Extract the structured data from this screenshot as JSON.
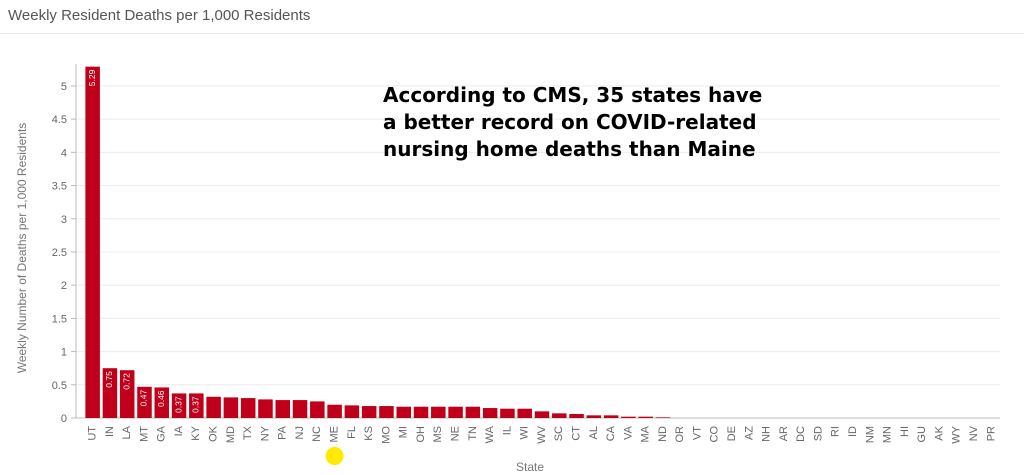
{
  "chart_data": {
    "type": "bar",
    "title": "Weekly Resident Deaths per 1,000 Residents",
    "xlabel": "State",
    "ylabel": "Weekly Number of Deaths per 1,000 Residents",
    "ylim": [
      0,
      5.3
    ],
    "yticks": [
      "0",
      "0.5",
      "1",
      "1.5",
      "2",
      "2.5",
      "3",
      "3.5",
      "4",
      "4.5",
      "5"
    ],
    "ytick_values": [
      0,
      0.5,
      1,
      1.5,
      2,
      2.5,
      3,
      3.5,
      4,
      4.5,
      5
    ],
    "grid": true,
    "bar_color": "#c0001a",
    "highlight_color": "#ffea00",
    "highlight_category": "ME",
    "categories": [
      "UT",
      "IN",
      "LA",
      "MT",
      "GA",
      "IA",
      "KY",
      "OK",
      "MD",
      "TX",
      "NY",
      "PA",
      "NJ",
      "NC",
      "ME",
      "FL",
      "KS",
      "MO",
      "MI",
      "OH",
      "MS",
      "NE",
      "TN",
      "WA",
      "IL",
      "WI",
      "WV",
      "SC",
      "CT",
      "AL",
      "CA",
      "VA",
      "MA",
      "ND",
      "OR",
      "VT",
      "CO",
      "DE",
      "AZ",
      "NH",
      "AR",
      "DC",
      "SD",
      "RI",
      "ID",
      "NM",
      "MN",
      "HI",
      "GU",
      "AK",
      "WY",
      "NV",
      "PR"
    ],
    "values": [
      5.29,
      0.75,
      0.72,
      0.47,
      0.46,
      0.37,
      0.37,
      0.32,
      0.31,
      0.3,
      0.28,
      0.27,
      0.27,
      0.25,
      0.2,
      0.19,
      0.18,
      0.18,
      0.17,
      0.17,
      0.17,
      0.17,
      0.17,
      0.15,
      0.14,
      0.14,
      0.1,
      0.07,
      0.06,
      0.04,
      0.04,
      0.02,
      0.02,
      0.01,
      0,
      0,
      0,
      0,
      0,
      0,
      0,
      0,
      0,
      0,
      0,
      0,
      0,
      0,
      0,
      0,
      0,
      0,
      0
    ],
    "data_labels": [
      "5.29",
      "0.75",
      "0.72",
      "0.47",
      "0.46",
      "0.37",
      "0.37",
      "",
      "",
      "",
      "",
      "",
      "",
      "",
      "",
      "",
      "",
      "",
      "",
      "",
      "",
      "",
      "",
      "",
      "",
      "",
      "",
      "",
      "",
      "",
      "",
      "",
      "",
      "",
      "",
      "",
      "",
      "",
      "",
      "",
      "",
      "",
      "",
      "",
      "",
      "",
      "",
      "",
      "",
      "",
      "",
      "",
      ""
    ],
    "annotation": "According to CMS, 35 states have a better record on COVID-related nursing home deaths than Maine"
  }
}
